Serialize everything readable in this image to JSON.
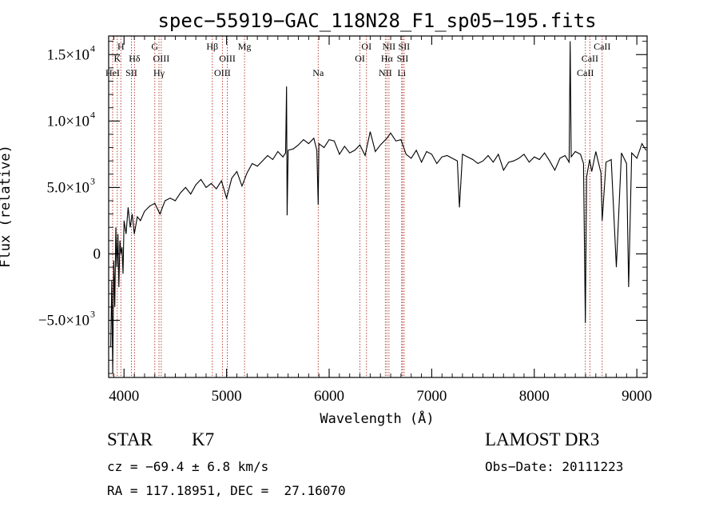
{
  "chart_data": {
    "type": "line",
    "title": "spec−55919−GAC_118N28_F1_sp05−195.fits",
    "xlabel": "Wavelength (Å)",
    "ylabel": "Flux (relative)",
    "xlim": [
      3850,
      9100
    ],
    "ylim": [
      -9300,
      16400
    ],
    "x_ticks": [
      {
        "value": 4000,
        "label": "4000"
      },
      {
        "value": 5000,
        "label": "5000"
      },
      {
        "value": 6000,
        "label": "6000"
      },
      {
        "value": 7000,
        "label": "7000"
      },
      {
        "value": 8000,
        "label": "8000"
      },
      {
        "value": 9000,
        "label": "9000"
      }
    ],
    "y_ticks": [
      {
        "value": -5000,
        "mantissa": "−5.0×10",
        "exp": "3"
      },
      {
        "value": 0,
        "mantissa": "0",
        "exp": ""
      },
      {
        "value": 5000,
        "mantissa": "5.0×10",
        "exp": "3"
      },
      {
        "value": 10000,
        "mantissa": "1.0×10",
        "exp": "4"
      },
      {
        "value": 15000,
        "mantissa": "1.5×10",
        "exp": "4"
      }
    ],
    "series": [
      {
        "name": "flux",
        "x": [
          3870,
          3880,
          3890,
          3900,
          3910,
          3920,
          3930,
          3940,
          3950,
          3960,
          3970,
          3980,
          3990,
          4000,
          4020,
          4040,
          4060,
          4080,
          4100,
          4130,
          4160,
          4200,
          4250,
          4300,
          4350,
          4400,
          4450,
          4500,
          4550,
          4600,
          4650,
          4700,
          4750,
          4800,
          4850,
          4900,
          4950,
          5000,
          5050,
          5100,
          5150,
          5200,
          5250,
          5300,
          5350,
          5400,
          5450,
          5500,
          5550,
          5575,
          5585,
          5590,
          5600,
          5650,
          5700,
          5750,
          5800,
          5850,
          5880,
          5893,
          5900,
          5950,
          6000,
          6050,
          6100,
          6150,
          6200,
          6250,
          6300,
          6350,
          6400,
          6450,
          6500,
          6563,
          6600,
          6650,
          6700,
          6750,
          6800,
          6850,
          6900,
          6950,
          7000,
          7050,
          7100,
          7150,
          7200,
          7250,
          7270,
          7300,
          7350,
          7400,
          7450,
          7500,
          7550,
          7600,
          7650,
          7700,
          7750,
          7800,
          7850,
          7900,
          7950,
          8000,
          8050,
          8100,
          8150,
          8200,
          8250,
          8300,
          8340,
          8350,
          8360,
          8400,
          8450,
          8480,
          8498,
          8510,
          8540,
          8560,
          8600,
          8650,
          8662,
          8700,
          8750,
          8800,
          8850,
          8900,
          8920,
          8950,
          9000,
          9050,
          9090
        ],
        "y": [
          -7000,
          -2000,
          -9000,
          -500,
          -4000,
          2000,
          -1000,
          1500,
          -2500,
          1000,
          0,
          500,
          -1500,
          2500,
          1500,
          3500,
          2000,
          3000,
          1500,
          2800,
          2500,
          3200,
          3600,
          3800,
          3000,
          4000,
          4200,
          4000,
          4600,
          5000,
          4500,
          5200,
          5600,
          5000,
          5300,
          4900,
          5500,
          4200,
          5700,
          6200,
          5100,
          6100,
          6800,
          6600,
          7000,
          7400,
          7100,
          7700,
          7300,
          7600,
          12600,
          2900,
          7800,
          7900,
          8200,
          8600,
          8300,
          8700,
          7800,
          3700,
          8300,
          8000,
          8600,
          8500,
          7500,
          8100,
          7600,
          7800,
          8200,
          7400,
          9200,
          7700,
          8200,
          8700,
          9100,
          8500,
          8600,
          7500,
          7200,
          7800,
          6900,
          7700,
          7500,
          6800,
          7300,
          7400,
          7200,
          7000,
          3500,
          7500,
          7300,
          7100,
          6800,
          7000,
          7400,
          6900,
          7500,
          6300,
          6900,
          7000,
          7200,
          7500,
          6900,
          7300,
          7100,
          7600,
          7000,
          6300,
          7200,
          7400,
          6900,
          16000,
          7300,
          7700,
          7500,
          6800,
          -5200,
          5800,
          7100,
          6200,
          7700,
          6100,
          2500,
          6900,
          7100,
          -1000,
          7600,
          6800,
          -2500,
          7600,
          7200,
          8300,
          7800
        ]
      }
    ],
    "line_color": "#000000",
    "spectral_lines": [
      {
        "wl": 3889,
        "label": "HeI",
        "row": 3
      },
      {
        "wl": 3934,
        "label": "K",
        "row": 2
      },
      {
        "wl": 3969,
        "label": "H",
        "row": 1
      },
      {
        "wl": 4072,
        "label": "SII",
        "row": 3
      },
      {
        "wl": 4102,
        "label": "Hδ",
        "row": 2
      },
      {
        "wl": 4300,
        "label": "G",
        "row": 1
      },
      {
        "wl": 4341,
        "label": "Hγ",
        "row": 3
      },
      {
        "wl": 4363,
        "label": "OIII",
        "row": 2
      },
      {
        "wl": 4861,
        "label": "Hβ",
        "row": 1
      },
      {
        "wl": 4959,
        "label": "OIII",
        "row": 3
      },
      {
        "wl": 5007,
        "label": "OIII",
        "row": 2
      },
      {
        "wl": 5175,
        "label": "Mg",
        "row": 1
      },
      {
        "wl": 5893,
        "label": "Na",
        "row": 3
      },
      {
        "wl": 6300,
        "label": "OI",
        "row": 2
      },
      {
        "wl": 6364,
        "label": "OI",
        "row": 1
      },
      {
        "wl": 6548,
        "label": "NII",
        "row": 3
      },
      {
        "wl": 6563,
        "label": "Hα",
        "row": 2
      },
      {
        "wl": 6583,
        "label": "NII",
        "row": 1
      },
      {
        "wl": 6707,
        "label": "Li",
        "row": 3
      },
      {
        "wl": 6716,
        "label": "SII",
        "row": 2
      },
      {
        "wl": 6731,
        "label": "SII",
        "row": 1
      },
      {
        "wl": 8498,
        "label": "CaII",
        "row": 3
      },
      {
        "wl": 8542,
        "label": "CaII",
        "row": 2
      },
      {
        "wl": 8662,
        "label": "CaII",
        "row": 1
      }
    ],
    "line_marker_color": "#b03020"
  },
  "info": {
    "class": "STAR",
    "subclass": "K7",
    "cz": "cz = −69.4 ± 6.8 km/s",
    "radec": "RA = 117.18951, DEC =  27.16070",
    "survey": "LAMOST DR3",
    "obs_date": "Obs−Date: 20111223"
  }
}
